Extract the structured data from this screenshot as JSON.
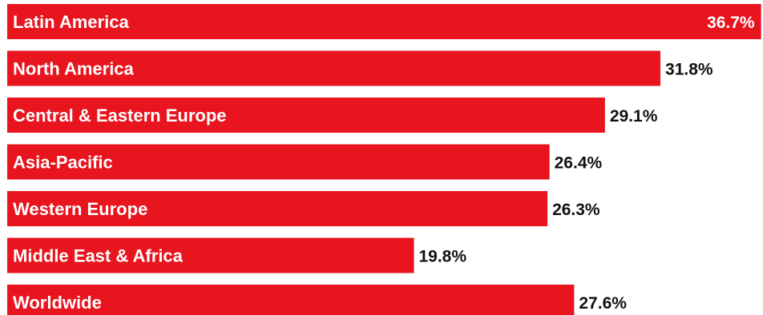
{
  "chart_data": {
    "type": "bar",
    "orientation": "horizontal",
    "categories": [
      "Latin America",
      "North America",
      "Central & Eastern Europe",
      "Asia-Pacific",
      "Western Europe",
      "Middle East & Africa",
      "Worldwide"
    ],
    "values": [
      36.7,
      31.8,
      29.1,
      26.4,
      26.3,
      19.8,
      27.6
    ],
    "value_labels": [
      "36.7%",
      "31.8%",
      "29.1%",
      "26.4%",
      "26.3%",
      "19.8%",
      "27.6%"
    ],
    "unit": "%",
    "grid": false,
    "colors": {
      "bar": "#e8141e",
      "label_text": "#ffffff",
      "value_text": "#111111"
    }
  }
}
